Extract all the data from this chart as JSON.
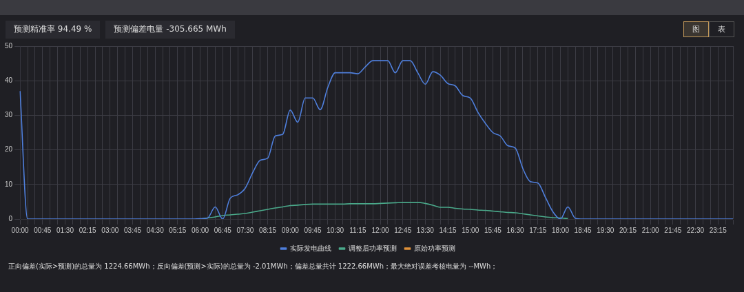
{
  "chart_data": {
    "type": "line",
    "categories": [
      "00:00",
      null,
      null,
      "00:45",
      null,
      null,
      "01:30",
      null,
      null,
      "02:15",
      null,
      null,
      "03:00",
      null,
      null,
      "03:45",
      null,
      null,
      "04:30",
      null,
      null,
      "05:15",
      null,
      null,
      "06:00",
      null,
      null,
      "06:45",
      null,
      null,
      "07:30",
      null,
      null,
      "08:15",
      null,
      null,
      "09:00",
      null,
      null,
      "09:45",
      null,
      null,
      "10:30",
      null,
      null,
      "11:15",
      null,
      null,
      "12:00",
      null,
      null,
      "12:45",
      null,
      null,
      "13:30",
      null,
      null,
      "14:15",
      null,
      null,
      "15:00",
      null,
      null,
      "15:45",
      null,
      null,
      "16:30",
      null,
      null,
      "17:15",
      null,
      null,
      "18:00",
      null,
      null,
      "18:45",
      null,
      null,
      "19:30",
      null,
      null,
      "20:15",
      null,
      null,
      "21:00",
      null,
      null,
      "21:45",
      null,
      null,
      "22:30",
      null,
      null,
      "23:15",
      null,
      null
    ],
    "series": [
      {
        "name": "原始功率预测",
        "color": "#e0913a",
        "values": [
          null,
          null,
          null,
          null,
          null,
          null,
          null,
          null,
          null,
          null,
          null,
          null,
          null,
          null,
          null,
          null,
          null,
          null,
          null,
          null,
          null,
          null,
          null,
          null,
          null,
          null,
          null,
          null,
          null,
          null,
          null,
          null,
          null,
          null,
          null,
          null,
          null,
          null,
          null,
          null,
          null,
          null,
          null,
          null,
          null,
          null,
          null,
          null,
          null,
          null,
          null,
          null,
          null,
          null,
          null,
          null,
          null,
          null,
          null,
          null,
          null,
          null,
          null,
          null,
          null,
          null,
          null,
          null,
          null,
          null,
          null,
          null,
          null,
          null,
          null,
          null,
          null,
          null,
          null,
          null,
          null,
          null,
          null,
          null,
          null,
          null,
          null,
          null,
          null,
          null,
          null,
          null,
          null,
          null,
          null,
          null
        ]
      },
      {
        "name": "调整后功率预测",
        "color": "#4aa98a",
        "values": [
          null,
          null,
          null,
          null,
          null,
          null,
          null,
          null,
          null,
          null,
          null,
          null,
          null,
          null,
          null,
          null,
          null,
          null,
          null,
          null,
          null,
          null,
          null,
          null,
          0,
          0.3,
          0.6,
          1.0,
          1.2,
          1.4,
          1.6,
          2.0,
          2.4,
          2.8,
          3.2,
          3.5,
          3.9,
          4.0,
          4.2,
          4.3,
          4.3,
          4.3,
          4.3,
          4.3,
          4.4,
          4.4,
          4.4,
          4.4,
          4.5,
          4.6,
          4.7,
          4.8,
          4.8,
          4.8,
          4.5,
          4.0,
          3.4,
          3.4,
          3.1,
          2.9,
          2.8,
          2.6,
          2.5,
          2.3,
          2.1,
          1.9,
          1.8,
          1.5,
          1.2,
          0.9,
          0.6,
          0.4,
          0.3,
          0.1,
          null,
          null,
          null,
          null,
          null,
          null,
          null,
          null,
          null,
          null,
          null,
          null,
          null,
          null,
          null,
          null,
          null,
          null,
          null,
          null,
          null,
          null
        ]
      },
      {
        "name": "实际发电曲线",
        "color": "#4f7fdc",
        "values": [
          37,
          0,
          0,
          0,
          0,
          0,
          0,
          0,
          0,
          0,
          0,
          0,
          0,
          0,
          0,
          0,
          0,
          0,
          0,
          0,
          0,
          0,
          0,
          0,
          0.1,
          0.3,
          3.5,
          0,
          6,
          7,
          8.9,
          13.4,
          17,
          17.6,
          24,
          24.5,
          31.5,
          28,
          35,
          35,
          31.6,
          38,
          42.3,
          42.3,
          42.3,
          42,
          44,
          45.8,
          45.8,
          45.8,
          42.3,
          45.8,
          45.8,
          42.3,
          39,
          42.6,
          41.6,
          39.2,
          38.5,
          35.7,
          35,
          30.9,
          27.7,
          25,
          24,
          21.2,
          20.5,
          14.6,
          10.8,
          10.4,
          6.3,
          2.1,
          0,
          3.5,
          0.2,
          0,
          0,
          0,
          0,
          0,
          0,
          0,
          0,
          0,
          0,
          0,
          0,
          0,
          0,
          0,
          0,
          0,
          0,
          0,
          0,
          0
        ]
      }
    ],
    "ylim": [
      0,
      50
    ],
    "yticks": [
      0,
      10,
      20,
      30,
      40,
      50
    ],
    "grid": true,
    "legend": "bottom",
    "marker": "none",
    "line_style": "solid",
    "annotations": [
      "预测精准率 94.49 %",
      "预测偏差电量 -305.665 MWh",
      "图",
      "表",
      "正向偏差(实际>预测)的总量为 1224.66MWh；反向偏差(预测>实际)的总量为 -2.01MWh；偏差总量共计 1222.66MWh；最大绝对误差考核电量为 --MWh；"
    ]
  }
}
